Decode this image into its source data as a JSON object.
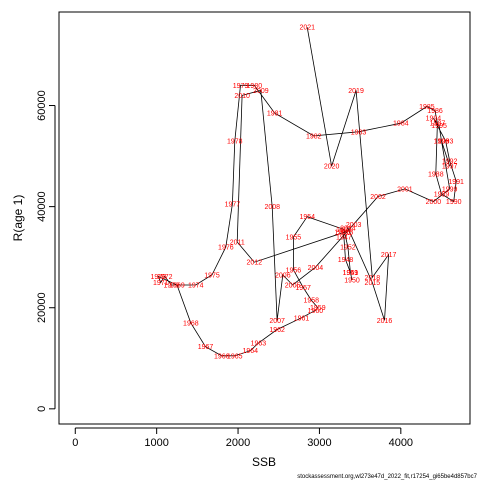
{
  "chart_data": {
    "type": "line",
    "xlabel": "SSB",
    "ylabel": "R(age 1)",
    "xlim": [
      -200,
      4850
    ],
    "ylim": [
      -3000,
      78500
    ],
    "xticks": [
      0,
      1000,
      2000,
      3000,
      4000
    ],
    "yticks": [
      0,
      20000,
      40000,
      60000
    ],
    "label_color": "#ff0000",
    "line_color": "#000000",
    "caption": "stockassessment.org,wl273e47d_2022_fit,r17254_gi65be4d857bc7",
    "points": [
      {
        "year": "1946",
        "x": 3280,
        "y": 35000
      },
      {
        "year": "1947",
        "x": 3300,
        "y": 34000
      },
      {
        "year": "1948",
        "x": 3320,
        "y": 29500
      },
      {
        "year": "1949",
        "x": 3380,
        "y": 27000
      },
      {
        "year": "1950",
        "x": 3400,
        "y": 25500
      },
      {
        "year": "1951",
        "x": 3380,
        "y": 27000
      },
      {
        "year": "1952",
        "x": 3350,
        "y": 32000
      },
      {
        "year": "1953",
        "x": 3300,
        "y": 35500
      },
      {
        "year": "1954",
        "x": 2850,
        "y": 38000
      },
      {
        "year": "1955",
        "x": 2680,
        "y": 34000
      },
      {
        "year": "1956",
        "x": 2680,
        "y": 27500
      },
      {
        "year": "1957",
        "x": 2800,
        "y": 24000
      },
      {
        "year": "1958",
        "x": 2900,
        "y": 21500
      },
      {
        "year": "1959",
        "x": 2980,
        "y": 20000
      },
      {
        "year": "1960",
        "x": 2950,
        "y": 19500
      },
      {
        "year": "1961",
        "x": 2780,
        "y": 18000
      },
      {
        "year": "1962",
        "x": 2480,
        "y": 15700
      },
      {
        "year": "1963",
        "x": 2250,
        "y": 13000
      },
      {
        "year": "1964",
        "x": 2150,
        "y": 11500
      },
      {
        "year": "1965",
        "x": 1960,
        "y": 10500
      },
      {
        "year": "1966",
        "x": 1800,
        "y": 10500
      },
      {
        "year": "1967",
        "x": 1600,
        "y": 12300
      },
      {
        "year": "1968",
        "x": 1420,
        "y": 17000
      },
      {
        "year": "1969",
        "x": 1250,
        "y": 24500
      },
      {
        "year": "1970",
        "x": 1020,
        "y": 26200
      },
      {
        "year": "1971",
        "x": 1050,
        "y": 25000
      },
      {
        "year": "1972",
        "x": 1100,
        "y": 26200
      },
      {
        "year": "1973",
        "x": 1180,
        "y": 24500
      },
      {
        "year": "1974",
        "x": 1480,
        "y": 24500
      },
      {
        "year": "1975",
        "x": 1680,
        "y": 26500
      },
      {
        "year": "1976",
        "x": 1850,
        "y": 32000
      },
      {
        "year": "1977",
        "x": 1930,
        "y": 40500
      },
      {
        "year": "1978",
        "x": 1960,
        "y": 53000
      },
      {
        "year": "1979",
        "x": 2030,
        "y": 64000
      },
      {
        "year": "1980",
        "x": 2200,
        "y": 64000
      },
      {
        "year": "1981",
        "x": 2450,
        "y": 58500
      },
      {
        "year": "1982",
        "x": 2930,
        "y": 54000
      },
      {
        "year": "1983",
        "x": 3480,
        "y": 54800
      },
      {
        "year": "1984",
        "x": 4000,
        "y": 56500
      },
      {
        "year": "1985",
        "x": 4320,
        "y": 59800
      },
      {
        "year": "1986",
        "x": 4420,
        "y": 59000
      },
      {
        "year": "1987",
        "x": 4450,
        "y": 56500
      },
      {
        "year": "1988",
        "x": 4430,
        "y": 46500
      },
      {
        "year": "1989",
        "x": 4500,
        "y": 42500
      },
      {
        "year": "1990",
        "x": 4650,
        "y": 41000
      },
      {
        "year": "1991",
        "x": 4680,
        "y": 45000
      },
      {
        "year": "1992",
        "x": 4600,
        "y": 49000
      },
      {
        "year": "1993",
        "x": 4550,
        "y": 53000
      },
      {
        "year": "1994",
        "x": 4400,
        "y": 57500
      },
      {
        "year": "1995",
        "x": 4470,
        "y": 56000
      },
      {
        "year": "1996",
        "x": 4500,
        "y": 53000
      },
      {
        "year": "1997",
        "x": 4600,
        "y": 48000
      },
      {
        "year": "1998",
        "x": 4500,
        "y": 53000
      },
      {
        "year": "1999",
        "x": 4600,
        "y": 43500
      },
      {
        "year": "2000",
        "x": 4400,
        "y": 41000
      },
      {
        "year": "2001",
        "x": 4050,
        "y": 43500
      },
      {
        "year": "2002",
        "x": 3720,
        "y": 42000
      },
      {
        "year": "2003",
        "x": 3420,
        "y": 36500
      },
      {
        "year": "2004",
        "x": 2950,
        "y": 28000
      },
      {
        "year": "2005",
        "x": 2670,
        "y": 24500
      },
      {
        "year": "2006",
        "x": 2550,
        "y": 26500
      },
      {
        "year": "2007",
        "x": 2480,
        "y": 17500
      },
      {
        "year": "2008",
        "x": 2420,
        "y": 40000
      },
      {
        "year": "2009",
        "x": 2280,
        "y": 63000
      },
      {
        "year": "2010",
        "x": 2050,
        "y": 62000
      },
      {
        "year": "2011",
        "x": 1990,
        "y": 33000
      },
      {
        "year": "2012",
        "x": 2200,
        "y": 29000
      },
      {
        "year": "2013",
        "x": 3320,
        "y": 35000
      },
      {
        "year": "2014",
        "x": 3350,
        "y": 35800
      },
      {
        "year": "2015",
        "x": 3650,
        "y": 25000
      },
      {
        "year": "2016",
        "x": 3800,
        "y": 17500
      },
      {
        "year": "2017",
        "x": 3850,
        "y": 30500
      },
      {
        "year": "2018",
        "x": 3650,
        "y": 26000
      },
      {
        "year": "2019",
        "x": 3450,
        "y": 63000
      },
      {
        "year": "2020",
        "x": 3150,
        "y": 48000
      },
      {
        "year": "2021",
        "x": 2850,
        "y": 75500
      }
    ]
  }
}
